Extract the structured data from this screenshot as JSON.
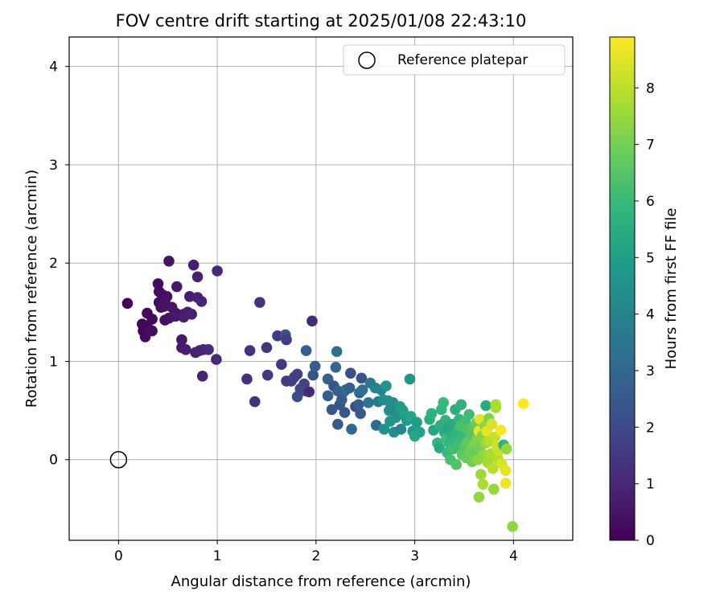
{
  "chart_data": {
    "type": "scatter",
    "title": "FOV centre drift starting at 2025/01/08 22:43:10",
    "xlabel": "Angular distance from reference (arcmin)",
    "ylabel": "Rotation from reference (arcmin)",
    "xlim": [
      -0.5,
      4.6
    ],
    "ylim": [
      -0.82,
      4.3
    ],
    "xticks": [
      0,
      1,
      2,
      3,
      4
    ],
    "yticks": [
      0,
      1,
      2,
      3,
      4
    ],
    "grid": true,
    "legend": {
      "placement": "upper-right",
      "entries": [
        "Reference platepar"
      ]
    },
    "reference_point": {
      "x": 0,
      "y": 0,
      "label": "Reference platepar"
    },
    "colorbar": {
      "label": "Hours from first FF file",
      "range": [
        0,
        8.9
      ],
      "ticks": [
        0,
        1,
        2,
        3,
        4,
        5,
        6,
        7,
        8
      ],
      "colormap": "viridis",
      "colormap_stops": [
        "#440154",
        "#482878",
        "#3e4989",
        "#31688e",
        "#26828e",
        "#1f9e89",
        "#35b779",
        "#6ece58",
        "#b5de2b",
        "#fde725"
      ]
    },
    "points": [
      {
        "x": 0.09,
        "y": 1.59,
        "h": 0.1
      },
      {
        "x": 0.24,
        "y": 1.38,
        "h": 0.1
      },
      {
        "x": 0.25,
        "y": 1.31,
        "h": 0.1
      },
      {
        "x": 0.27,
        "y": 1.25,
        "h": 0.2
      },
      {
        "x": 0.29,
        "y": 1.36,
        "h": 0.2
      },
      {
        "x": 0.29,
        "y": 1.49,
        "h": 0.2
      },
      {
        "x": 0.31,
        "y": 1.32,
        "h": 0.2
      },
      {
        "x": 0.34,
        "y": 1.43,
        "h": 0.2
      },
      {
        "x": 0.34,
        "y": 1.31,
        "h": 0.3
      },
      {
        "x": 0.4,
        "y": 1.79,
        "h": 0.3
      },
      {
        "x": 0.41,
        "y": 1.71,
        "h": 0.3
      },
      {
        "x": 0.41,
        "y": 1.6,
        "h": 0.3
      },
      {
        "x": 0.43,
        "y": 1.55,
        "h": 0.3
      },
      {
        "x": 0.44,
        "y": 1.68,
        "h": 0.3
      },
      {
        "x": 0.46,
        "y": 1.56,
        "h": 0.4
      },
      {
        "x": 0.47,
        "y": 1.61,
        "h": 0.4
      },
      {
        "x": 0.47,
        "y": 1.42,
        "h": 0.4
      },
      {
        "x": 0.49,
        "y": 1.66,
        "h": 0.4
      },
      {
        "x": 0.51,
        "y": 1.44,
        "h": 0.4
      },
      {
        "x": 0.51,
        "y": 2.02,
        "h": 0.5
      },
      {
        "x": 0.54,
        "y": 1.55,
        "h": 0.5
      },
      {
        "x": 0.56,
        "y": 1.46,
        "h": 0.5
      },
      {
        "x": 0.58,
        "y": 1.49,
        "h": 0.5
      },
      {
        "x": 0.58,
        "y": 1.46,
        "h": 0.6
      },
      {
        "x": 0.59,
        "y": 1.76,
        "h": 0.6
      },
      {
        "x": 0.64,
        "y": 1.22,
        "h": 0.6
      },
      {
        "x": 0.64,
        "y": 1.14,
        "h": 0.6
      },
      {
        "x": 0.66,
        "y": 1.48,
        "h": 0.6
      },
      {
        "x": 0.66,
        "y": 1.45,
        "h": 0.7
      },
      {
        "x": 0.68,
        "y": 1.12,
        "h": 0.7
      },
      {
        "x": 0.7,
        "y": 1.5,
        "h": 0.7
      },
      {
        "x": 0.72,
        "y": 1.66,
        "h": 0.7
      },
      {
        "x": 0.74,
        "y": 1.48,
        "h": 0.8
      },
      {
        "x": 0.76,
        "y": 1.98,
        "h": 0.8
      },
      {
        "x": 0.78,
        "y": 1.09,
        "h": 0.8
      },
      {
        "x": 0.8,
        "y": 1.65,
        "h": 0.8
      },
      {
        "x": 0.8,
        "y": 1.86,
        "h": 0.8
      },
      {
        "x": 0.82,
        "y": 1.11,
        "h": 0.9
      },
      {
        "x": 0.84,
        "y": 1.61,
        "h": 0.9
      },
      {
        "x": 0.85,
        "y": 0.85,
        "h": 0.9
      },
      {
        "x": 0.86,
        "y": 1.12,
        "h": 0.9
      },
      {
        "x": 0.91,
        "y": 1.12,
        "h": 1.0
      },
      {
        "x": 0.99,
        "y": 1.02,
        "h": 1.0
      },
      {
        "x": 1.0,
        "y": 1.92,
        "h": 1.0
      },
      {
        "x": 1.3,
        "y": 0.82,
        "h": 1.2
      },
      {
        "x": 1.33,
        "y": 1.11,
        "h": 1.2
      },
      {
        "x": 1.38,
        "y": 0.59,
        "h": 1.3
      },
      {
        "x": 1.43,
        "y": 1.6,
        "h": 1.3
      },
      {
        "x": 1.5,
        "y": 1.14,
        "h": 1.4
      },
      {
        "x": 1.51,
        "y": 0.86,
        "h": 1.4
      },
      {
        "x": 1.61,
        "y": 1.26,
        "h": 1.5
      },
      {
        "x": 1.65,
        "y": 0.97,
        "h": 1.5
      },
      {
        "x": 1.69,
        "y": 1.27,
        "h": 2.3
      },
      {
        "x": 1.7,
        "y": 1.22,
        "h": 1.6
      },
      {
        "x": 1.7,
        "y": 0.8,
        "h": 1.6
      },
      {
        "x": 1.75,
        "y": 0.8,
        "h": 1.6
      },
      {
        "x": 1.78,
        "y": 0.84,
        "h": 1.7
      },
      {
        "x": 1.81,
        "y": 0.87,
        "h": 1.7
      },
      {
        "x": 1.81,
        "y": 0.64,
        "h": 2.1
      },
      {
        "x": 1.84,
        "y": 0.72,
        "h": 2.0
      },
      {
        "x": 1.88,
        "y": 0.77,
        "h": 1.8
      },
      {
        "x": 1.89,
        "y": 0.7,
        "h": 2.0
      },
      {
        "x": 1.9,
        "y": 1.11,
        "h": 2.6
      },
      {
        "x": 1.93,
        "y": 0.69,
        "h": 1.0
      },
      {
        "x": 1.96,
        "y": 1.41,
        "h": 1.0
      },
      {
        "x": 1.97,
        "y": 0.86,
        "h": 2.4
      },
      {
        "x": 1.99,
        "y": 0.95,
        "h": 2.6
      },
      {
        "x": 2.12,
        "y": 0.65,
        "h": 2.6
      },
      {
        "x": 2.12,
        "y": 0.82,
        "h": 2.7
      },
      {
        "x": 2.16,
        "y": 0.51,
        "h": 2.4
      },
      {
        "x": 2.18,
        "y": 0.75,
        "h": 2.3
      },
      {
        "x": 2.2,
        "y": 0.94,
        "h": 3.0
      },
      {
        "x": 2.21,
        "y": 1.1,
        "h": 3.2
      },
      {
        "x": 2.22,
        "y": 0.36,
        "h": 2.6
      },
      {
        "x": 2.22,
        "y": 0.7,
        "h": 2.8
      },
      {
        "x": 2.24,
        "y": 0.56,
        "h": 2.3
      },
      {
        "x": 2.26,
        "y": 0.61,
        "h": 2.5
      },
      {
        "x": 2.28,
        "y": 0.69,
        "h": 2.8
      },
      {
        "x": 2.29,
        "y": 0.48,
        "h": 2.4
      },
      {
        "x": 2.3,
        "y": 0.71,
        "h": 3.0
      },
      {
        "x": 2.34,
        "y": 0.73,
        "h": 2.7
      },
      {
        "x": 2.35,
        "y": 0.88,
        "h": 2.2
      },
      {
        "x": 2.36,
        "y": 0.31,
        "h": 3.0
      },
      {
        "x": 2.4,
        "y": 0.54,
        "h": 2.0
      },
      {
        "x": 2.43,
        "y": 0.56,
        "h": 2.6
      },
      {
        "x": 2.44,
        "y": 0.68,
        "h": 2.9
      },
      {
        "x": 2.45,
        "y": 0.47,
        "h": 2.5
      },
      {
        "x": 2.46,
        "y": 0.83,
        "h": 2.3
      },
      {
        "x": 2.47,
        "y": 0.71,
        "h": 3.3
      },
      {
        "x": 2.53,
        "y": 0.58,
        "h": 3.5
      },
      {
        "x": 2.55,
        "y": 0.78,
        "h": 3.6
      },
      {
        "x": 2.6,
        "y": 0.73,
        "h": 3.9
      },
      {
        "x": 2.61,
        "y": 0.35,
        "h": 3.0
      },
      {
        "x": 2.63,
        "y": 0.59,
        "h": 3.7
      },
      {
        "x": 2.66,
        "y": 0.71,
        "h": 4.0
      },
      {
        "x": 2.68,
        "y": 0.61,
        "h": 4.3
      },
      {
        "x": 2.69,
        "y": 0.31,
        "h": 4.5
      },
      {
        "x": 2.71,
        "y": 0.75,
        "h": 4.6
      },
      {
        "x": 2.73,
        "y": 0.6,
        "h": 4.4
      },
      {
        "x": 2.74,
        "y": 0.5,
        "h": 4.8
      },
      {
        "x": 2.75,
        "y": 0.39,
        "h": 4.6
      },
      {
        "x": 2.76,
        "y": 0.52,
        "h": 4.2
      },
      {
        "x": 2.78,
        "y": 0.58,
        "h": 4.3
      },
      {
        "x": 2.79,
        "y": 0.28,
        "h": 4.4
      },
      {
        "x": 2.81,
        "y": 0.43,
        "h": 4.7
      },
      {
        "x": 2.83,
        "y": 0.47,
        "h": 4.5
      },
      {
        "x": 2.85,
        "y": 0.54,
        "h": 4.9
      },
      {
        "x": 2.86,
        "y": 0.31,
        "h": 4.1
      },
      {
        "x": 2.88,
        "y": 0.5,
        "h": 5.0
      },
      {
        "x": 2.9,
        "y": 0.45,
        "h": 5.1
      },
      {
        "x": 2.92,
        "y": 0.4,
        "h": 4.8
      },
      {
        "x": 2.95,
        "y": 0.82,
        "h": 4.6
      },
      {
        "x": 2.96,
        "y": 0.44,
        "h": 5.2
      },
      {
        "x": 2.98,
        "y": 0.29,
        "h": 4.8
      },
      {
        "x": 3.0,
        "y": 0.24,
        "h": 5.3
      },
      {
        "x": 3.02,
        "y": 0.38,
        "h": 5.0
      },
      {
        "x": 3.05,
        "y": 0.28,
        "h": 5.1
      },
      {
        "x": 3.15,
        "y": 0.41,
        "h": 5.5
      },
      {
        "x": 3.17,
        "y": 0.47,
        "h": 5.7
      },
      {
        "x": 3.19,
        "y": 0.3,
        "h": 5.3
      },
      {
        "x": 3.23,
        "y": 0.17,
        "h": 5.9
      },
      {
        "x": 3.25,
        "y": 0.12,
        "h": 5.4
      },
      {
        "x": 3.26,
        "y": 0.35,
        "h": 5.6
      },
      {
        "x": 3.27,
        "y": 0.51,
        "h": 5.8
      },
      {
        "x": 3.29,
        "y": 0.58,
        "h": 6.0
      },
      {
        "x": 3.3,
        "y": 0.28,
        "h": 5.5
      },
      {
        "x": 3.31,
        "y": 0.4,
        "h": 5.7
      },
      {
        "x": 3.32,
        "y": 0.21,
        "h": 6.1
      },
      {
        "x": 3.33,
        "y": 0.07,
        "h": 6.0
      },
      {
        "x": 3.34,
        "y": 0.32,
        "h": 5.2
      },
      {
        "x": 3.35,
        "y": 0.17,
        "h": 5.8
      },
      {
        "x": 3.36,
        "y": 0.0,
        "h": 6.3
      },
      {
        "x": 3.37,
        "y": 0.25,
        "h": 5.6
      },
      {
        "x": 3.38,
        "y": 0.36,
        "h": 5.4
      },
      {
        "x": 3.39,
        "y": 0.11,
        "h": 6.2
      },
      {
        "x": 3.4,
        "y": 0.19,
        "h": 5.9
      },
      {
        "x": 3.41,
        "y": 0.51,
        "h": 5.6
      },
      {
        "x": 3.42,
        "y": -0.05,
        "h": 6.4
      },
      {
        "x": 3.43,
        "y": 0.29,
        "h": 5.8
      },
      {
        "x": 3.44,
        "y": 0.15,
        "h": 6.1
      },
      {
        "x": 3.45,
        "y": 0.41,
        "h": 5.9
      },
      {
        "x": 3.46,
        "y": 0.34,
        "h": 6.3
      },
      {
        "x": 3.47,
        "y": 0.56,
        "h": 5.7
      },
      {
        "x": 3.48,
        "y": 0.05,
        "h": 6.6
      },
      {
        "x": 3.49,
        "y": 0.22,
        "h": 6.0
      },
      {
        "x": 3.5,
        "y": 0.13,
        "h": 6.5
      },
      {
        "x": 3.51,
        "y": 0.39,
        "h": 6.2
      },
      {
        "x": 3.52,
        "y": 0.02,
        "h": 6.8
      },
      {
        "x": 3.53,
        "y": 0.3,
        "h": 6.4
      },
      {
        "x": 3.54,
        "y": 0.18,
        "h": 6.7
      },
      {
        "x": 3.55,
        "y": 0.46,
        "h": 6.1
      },
      {
        "x": 3.56,
        "y": 0.09,
        "h": 6.9
      },
      {
        "x": 3.57,
        "y": 0.26,
        "h": 6.5
      },
      {
        "x": 3.58,
        "y": -0.02,
        "h": 7.0
      },
      {
        "x": 3.59,
        "y": 0.33,
        "h": 6.6
      },
      {
        "x": 3.6,
        "y": 0.15,
        "h": 7.1
      },
      {
        "x": 3.61,
        "y": 0.07,
        "h": 6.8
      },
      {
        "x": 3.62,
        "y": 0.37,
        "h": 6.9
      },
      {
        "x": 3.63,
        "y": 0.21,
        "h": 7.2
      },
      {
        "x": 3.64,
        "y": 0.0,
        "h": 7.3
      },
      {
        "x": 3.65,
        "y": -0.38,
        "h": 7.4
      },
      {
        "x": 3.65,
        "y": 0.29,
        "h": 8.7
      },
      {
        "x": 3.66,
        "y": 0.12,
        "h": 7.0
      },
      {
        "x": 3.66,
        "y": 0.41,
        "h": 8.5
      },
      {
        "x": 3.67,
        "y": -0.15,
        "h": 7.6
      },
      {
        "x": 3.68,
        "y": 0.24,
        "h": 7.3
      },
      {
        "x": 3.69,
        "y": -0.25,
        "h": 7.8
      },
      {
        "x": 3.7,
        "y": 0.05,
        "h": 7.5
      },
      {
        "x": 3.71,
        "y": 0.34,
        "h": 7.4
      },
      {
        "x": 3.72,
        "y": 0.55,
        "h": 5.4
      },
      {
        "x": 3.72,
        "y": 0.17,
        "h": 7.6
      },
      {
        "x": 3.73,
        "y": 0.29,
        "h": 8.6
      },
      {
        "x": 3.74,
        "y": -0.03,
        "h": 7.7
      },
      {
        "x": 3.75,
        "y": 0.42,
        "h": 7.2
      },
      {
        "x": 3.76,
        "y": 0.19,
        "h": 7.9
      },
      {
        "x": 3.77,
        "y": 0.06,
        "h": 7.8
      },
      {
        "x": 3.78,
        "y": 0.36,
        "h": 8.4
      },
      {
        "x": 3.79,
        "y": -0.09,
        "h": 8.0
      },
      {
        "x": 3.8,
        "y": -0.3,
        "h": 7.5
      },
      {
        "x": 3.81,
        "y": 0.23,
        "h": 8.1
      },
      {
        "x": 3.82,
        "y": 0.53,
        "h": 7.7
      },
      {
        "x": 3.82,
        "y": 0.56,
        "h": 7.8
      },
      {
        "x": 3.83,
        "y": 0.13,
        "h": 8.3
      },
      {
        "x": 3.84,
        "y": 0.01,
        "h": 7.9
      },
      {
        "x": 3.85,
        "y": 0.09,
        "h": 8.2
      },
      {
        "x": 3.87,
        "y": 0.3,
        "h": 8.8
      },
      {
        "x": 3.88,
        "y": -0.04,
        "h": 8.4
      },
      {
        "x": 3.9,
        "y": 0.15,
        "h": 5.7
      },
      {
        "x": 3.92,
        "y": -0.11,
        "h": 8.6
      },
      {
        "x": 3.93,
        "y": 0.11,
        "h": 7.5
      },
      {
        "x": 3.92,
        "y": -0.24,
        "h": 8.7
      },
      {
        "x": 3.99,
        "y": -0.68,
        "h": 7.4
      },
      {
        "x": 4.1,
        "y": 0.57,
        "h": 8.9
      }
    ]
  }
}
